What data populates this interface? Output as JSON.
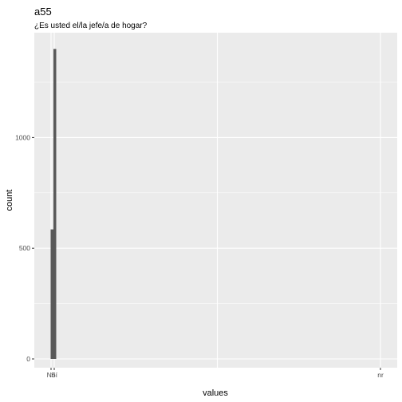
{
  "chart_data": {
    "type": "bar",
    "title": "a55",
    "subtitle": "¿Es usted el/la jefe/a de hogar?",
    "xlabel": "values",
    "ylabel": "count",
    "categories": [
      "No",
      "Sí",
      "nr"
    ],
    "values": [
      585,
      1400,
      0
    ],
    "ylim": [
      0,
      1470
    ],
    "yticks": [
      0,
      500,
      1000
    ],
    "grid": true,
    "legend": "none",
    "colors": {
      "panel": "#EBEBEB",
      "grid": "#FFFFFF",
      "bar": "#595959"
    }
  }
}
